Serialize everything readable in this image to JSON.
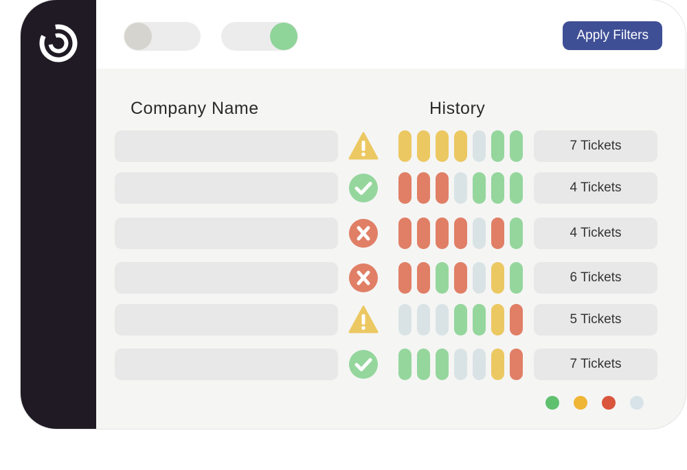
{
  "toolbar": {
    "apply_label": "Apply Filters",
    "toggles": [
      {
        "on": false
      },
      {
        "on": true
      }
    ]
  },
  "table": {
    "headers": {
      "company": "Company Name",
      "history": "History"
    },
    "rows": [
      {
        "status": "warning",
        "history": [
          "yellow",
          "yellow",
          "yellow",
          "yellow",
          "gray",
          "green",
          "green"
        ],
        "tickets": "7 Tickets"
      },
      {
        "status": "ok",
        "history": [
          "red",
          "red",
          "red",
          "gray",
          "green",
          "green",
          "green"
        ],
        "tickets": "4 Tickets"
      },
      {
        "status": "error",
        "history": [
          "red",
          "red",
          "red",
          "red",
          "gray",
          "red",
          "green"
        ],
        "tickets": "4 Tickets"
      },
      {
        "status": "error",
        "history": [
          "red",
          "red",
          "green",
          "red",
          "gray",
          "yellow",
          "green"
        ],
        "tickets": "6 Tickets"
      },
      {
        "status": "warning",
        "history": [
          "gray",
          "gray",
          "gray",
          "green",
          "green",
          "yellow",
          "red"
        ],
        "tickets": "5 Tickets"
      },
      {
        "status": "ok",
        "history": [
          "green",
          "green",
          "green",
          "gray",
          "gray",
          "yellow",
          "red"
        ],
        "tickets": "7 Tickets"
      }
    ]
  },
  "legend": [
    "green",
    "yellow",
    "red",
    "gray"
  ],
  "icons": {
    "logo": "brand-logo-icon",
    "warning": "warning-icon",
    "ok": "check-circle-icon",
    "error": "x-circle-icon"
  },
  "colors": {
    "sidebar": "#1f1a23",
    "accent": "#3f4f96",
    "toggle_off_knob": "#d6d4cf",
    "toggle_on_knob": "#8fd499",
    "green": "#95d69d",
    "yellow": "#ecc862",
    "red": "#e07f66",
    "gray": "#d9e3e6",
    "legend_green": "#5fc06f",
    "legend_yellow": "#efb535",
    "legend_red": "#d9553b",
    "legend_gray": "#d7e3e8"
  }
}
